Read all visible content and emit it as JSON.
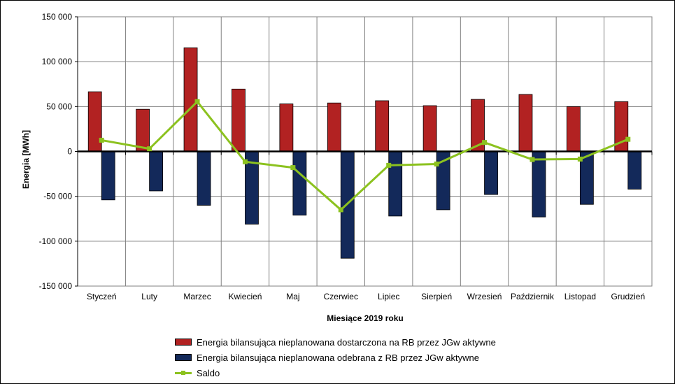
{
  "chart_data": {
    "type": "bar",
    "xlabel": "Miesiące 2019  roku",
    "ylabel": "Energia  [MWh]",
    "ylim": [
      -150000,
      150000
    ],
    "yticks": [
      150000,
      100000,
      50000,
      0,
      -50000,
      -100000,
      -150000
    ],
    "ytick_labels": [
      "150 000",
      "100 000",
      "50 000",
      "0",
      "-50 000",
      "-100 000",
      "-150 000"
    ],
    "grid": true,
    "legend_position": "bottom",
    "categories": [
      "Styczeń",
      "Luty",
      "Marzec",
      "Kwiecień",
      "Maj",
      "Czerwiec",
      "Lipiec",
      "Sierpień",
      "Wrzesień",
      "Październik",
      "Listopad",
      "Grudzień"
    ],
    "series": [
      {
        "name": "Energia bilansująca nieplanowana dostarczona na RB przez JGw aktywne",
        "type": "bar",
        "color": "#b22222",
        "values": [
          66500,
          47000,
          115500,
          69500,
          53000,
          54000,
          56500,
          51000,
          58000,
          63500,
          50000,
          55500
        ]
      },
      {
        "name": "Energia bilansująca nieplanowana odebrana z RB przez JGw aktywne",
        "type": "bar",
        "color": "#13295a",
        "values": [
          -54000,
          -44000,
          -60000,
          -81000,
          -71000,
          -119000,
          -72000,
          -65000,
          -48000,
          -73000,
          -59000,
          -42000
        ]
      },
      {
        "name": "Saldo",
        "type": "line",
        "color": "#8cc21f",
        "values": [
          12500,
          3000,
          55500,
          -11500,
          -18000,
          -65000,
          -15500,
          -14000,
          10000,
          -9000,
          -8500,
          13500
        ]
      }
    ]
  }
}
